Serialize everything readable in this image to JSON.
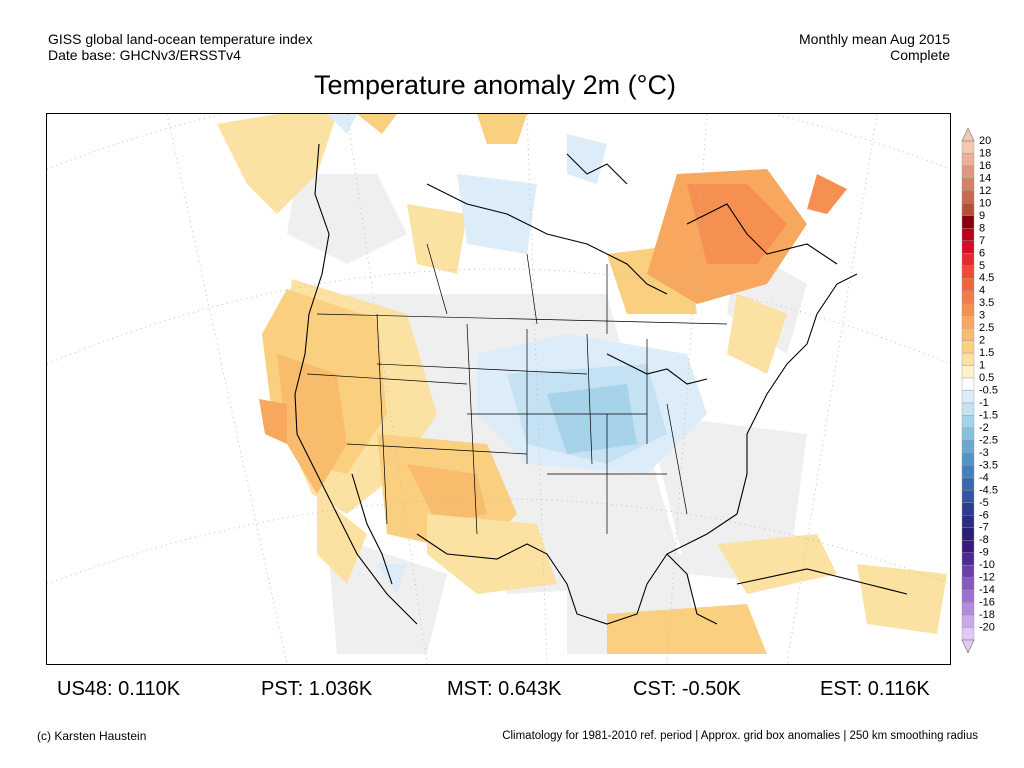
{
  "header": {
    "left_line1": "GISS global land-ocean temperature index",
    "left_line2": "Date base: GHCNv3/ERSSTv4",
    "right_line1": "Monthly mean Aug 2015",
    "right_line2": "Complete"
  },
  "title": "Temperature anomaly 2m (°C)",
  "colorbar": {
    "labels": [
      "20",
      "18",
      "16",
      "14",
      "12",
      "10",
      "9",
      "8",
      "7",
      "6",
      "5",
      "4.5",
      "4",
      "3.5",
      "3",
      "2.5",
      "2",
      "1.5",
      "1",
      "0.5",
      "-0.5",
      "-1",
      "-1.5",
      "-2",
      "-2.5",
      "-3",
      "-3.5",
      "-4",
      "-4.5",
      "-5",
      "-6",
      "-7",
      "-8",
      "-9",
      "-10",
      "-12",
      "-14",
      "-16",
      "-18",
      "-20"
    ],
    "colors": [
      "#f6c8b0",
      "#ecb098",
      "#e0987e",
      "#d48066",
      "#c8684e",
      "#b05036",
      "#8a0010",
      "#b8001a",
      "#d40e24",
      "#e42c30",
      "#ee4a36",
      "#f2643e",
      "#f47a48",
      "#f69052",
      "#f8a85e",
      "#f8bc6c",
      "#fad080",
      "#fbe2a2",
      "#fdf2c8",
      "#ffffff",
      "#dcecf8",
      "#c4e2f4",
      "#a6d2ea",
      "#88c0e0",
      "#6aa8d2",
      "#5494c6",
      "#4480ba",
      "#3a6aac",
      "#32549e",
      "#2a3e90",
      "#2a2c80",
      "#2c1e72",
      "#3a1a82",
      "#4e2a96",
      "#6a40ac",
      "#8458c0",
      "#9c70d0",
      "#b48ade",
      "#cca8ea",
      "#e2c8f4"
    ]
  },
  "regions": [
    {
      "id": "us48",
      "text": "US48: 0.110K"
    },
    {
      "id": "pst",
      "text": "PST: 1.036K"
    },
    {
      "id": "mst",
      "text": "MST: 0.643K"
    },
    {
      "id": "cst",
      "text": "CST: -0.50K"
    },
    {
      "id": "est",
      "text": "EST: 0.116K"
    }
  ],
  "footer": {
    "credit": "(c) Karsten Haustein",
    "climatology": "Climatology for 1981-2010 ref. period | Approx. grid box anomalies | 250 km smoothing radius"
  }
}
